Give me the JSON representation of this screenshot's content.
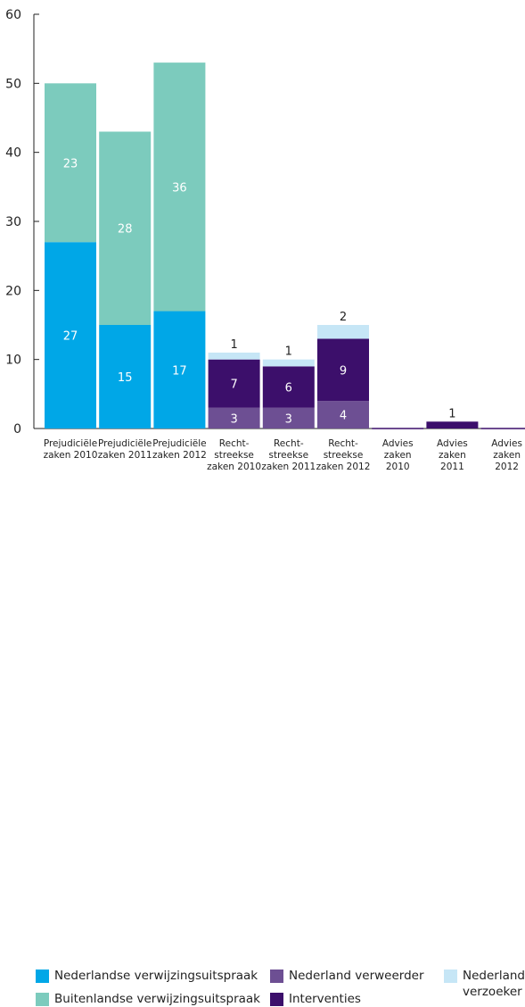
{
  "chart_data": {
    "type": "bar",
    "stacked": true,
    "ylim": [
      0,
      60
    ],
    "yticks": [
      0,
      10,
      20,
      30,
      40,
      50,
      60
    ],
    "grid": false,
    "legend_position": "bottom",
    "categories": [
      [
        "Prejudiciële",
        "zaken 2010"
      ],
      [
        "Prejudiciële",
        "zaken 2011"
      ],
      [
        "Prejudiciële",
        "zaken 2012"
      ],
      [
        "Recht-",
        "streekse",
        "zaken 2010"
      ],
      [
        "Recht-",
        "streekse",
        "zaken 2011"
      ],
      [
        "Recht-",
        "streekse",
        "zaken 2012"
      ],
      [
        "Advies",
        "zaken",
        "2010"
      ],
      [
        "Advies",
        "zaken",
        "2011"
      ],
      [
        "Advies",
        "zaken",
        "2012"
      ]
    ],
    "series": [
      {
        "name": "Nederlandse verwijzingsuitspraak",
        "color": "#00a7e7",
        "label_color": "#ffffff",
        "values": [
          27,
          15,
          17,
          0,
          0,
          0,
          0,
          0,
          0
        ]
      },
      {
        "name": "Buitenlandse verwijzingsuitspraak",
        "color": "#7ccbbd",
        "label_color": "#ffffff",
        "values": [
          23,
          28,
          36,
          0,
          0,
          0,
          0,
          0,
          0
        ]
      },
      {
        "name": "Nederland verweerder",
        "color": "#6d4f93",
        "label_color": "#ffffff",
        "values": [
          0,
          0,
          0,
          3,
          3,
          4,
          0,
          0,
          0
        ]
      },
      {
        "name": "Interventies",
        "color": "#3c0f6b",
        "label_color": "#ffffff",
        "values": [
          0,
          0,
          0,
          7,
          6,
          9,
          0,
          1,
          0
        ]
      },
      {
        "name": "Nederland\nverzoeker",
        "color": "#c6e6f6",
        "label_color": "#222222",
        "values": [
          0,
          0,
          0,
          1,
          1,
          2,
          0,
          0,
          0
        ]
      }
    ]
  },
  "legend": {
    "items": [
      {
        "series_index": 0
      },
      {
        "series_index": 2
      },
      {
        "series_index": 4
      },
      {
        "series_index": 1
      },
      {
        "series_index": 3
      }
    ]
  }
}
